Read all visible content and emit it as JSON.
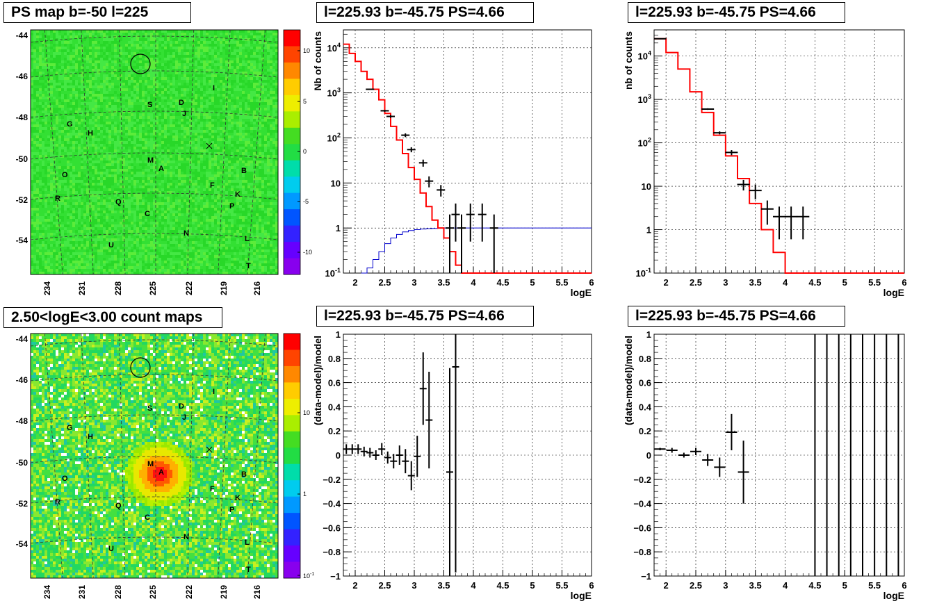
{
  "colors": {
    "data": "#000000",
    "model": "#ff0000",
    "ratio_curve": "#0000cc",
    "grid": "#000000",
    "map_base": "#22dd22"
  },
  "maps": [
    {
      "title": "PS map b=-50 l=225",
      "kind": "significance",
      "lat_ticks": [
        "-44",
        "-46",
        "-48",
        "-50",
        "-52",
        "-54"
      ],
      "lon_ticks": [
        "234",
        "231",
        "228",
        "225",
        "222",
        "219",
        "216"
      ],
      "colorbar_ticks": [
        "10",
        "5",
        "0",
        "-5",
        "-10"
      ],
      "colorbar_scale": "linear",
      "colorbar_range": [
        -12,
        12
      ],
      "source_labels": [
        "I",
        "S",
        "D",
        "J",
        "G",
        "H",
        "M",
        "A",
        "B",
        "O",
        "F",
        "K",
        "R",
        "Q",
        "P",
        "C",
        "N",
        "U",
        "L",
        "T"
      ]
    },
    {
      "title": "2.50<logE<3.00 count maps",
      "kind": "counts",
      "lat_ticks": [
        "-44",
        "-46",
        "-48",
        "-50",
        "-52",
        "-54"
      ],
      "lon_ticks": [
        "234",
        "231",
        "228",
        "225",
        "222",
        "219",
        "216"
      ],
      "colorbar_ticks": [
        "10",
        "1",
        "10-1"
      ],
      "colorbar_scale": "log",
      "colorbar_range": [
        0.1,
        50
      ],
      "source_labels": [
        "I",
        "S",
        "D",
        "J",
        "G",
        "H",
        "M",
        "A",
        "B",
        "O",
        "F",
        "K",
        "R",
        "Q",
        "P",
        "C",
        "N",
        "U",
        "L",
        "T"
      ]
    }
  ],
  "chart_data": [
    {
      "type": "line",
      "title": "l=225.93 b=-45.75 PS=4.66",
      "xlabel": "logE",
      "ylabel": "Nb of counts",
      "yscale": "log",
      "xlim": [
        1.8,
        6
      ],
      "ylim": [
        0.1,
        25000
      ],
      "x_ticks": [
        "2",
        "2.5",
        "3",
        "3.5",
        "4",
        "4.5",
        "5",
        "5.5",
        "6"
      ],
      "y_ticks": [
        "10^4",
        "10^3",
        "10^2",
        "10",
        "1",
        "10^-1"
      ],
      "grid": true,
      "bin_edges": [
        1.8,
        1.9,
        2.0,
        2.1,
        2.2,
        2.3,
        2.4,
        2.5,
        2.6,
        2.7,
        2.8,
        2.9,
        3.0,
        3.1,
        3.2,
        3.3,
        3.4,
        3.5,
        3.6,
        3.7,
        3.8,
        3.9,
        4.0,
        6.0
      ],
      "model_counts": [
        12000,
        7500,
        5000,
        3000,
        2000,
        1200,
        700,
        350,
        180,
        90,
        45,
        22,
        12,
        6,
        3,
        1.5,
        1.0,
        0.6,
        0.3,
        0.15,
        0.1,
        0.1,
        0.1
      ],
      "data_points": [
        {
          "x": 2.25,
          "y": 1200,
          "err": 40
        },
        {
          "x": 2.5,
          "y": 400,
          "err": 20
        },
        {
          "x": 2.6,
          "y": 300,
          "err": 20
        },
        {
          "x": 2.85,
          "y": 115,
          "err": 11
        },
        {
          "x": 2.95,
          "y": 55,
          "err": 7
        },
        {
          "x": 3.15,
          "y": 28,
          "err": 5
        },
        {
          "x": 3.25,
          "y": 11,
          "err": 3
        },
        {
          "x": 3.45,
          "y": 7,
          "err": 2
        },
        {
          "x": 3.6,
          "y": 1,
          "err": 1
        },
        {
          "x": 3.7,
          "y": 2,
          "err": 1.5
        },
        {
          "x": 3.8,
          "y": 1,
          "err": 1
        },
        {
          "x": 3.95,
          "y": 2,
          "err": 1.5
        },
        {
          "x": 4.15,
          "y": 2,
          "err": 1.5
        },
        {
          "x": 4.35,
          "y": 1,
          "err": 1
        }
      ],
      "ratio_curve": {
        "x": [
          2.1,
          2.2,
          2.3,
          2.4,
          2.5,
          2.6,
          2.7,
          2.8,
          2.9,
          3.0,
          3.1,
          3.2,
          3.3,
          3.4,
          3.5,
          3.6,
          3.7,
          6.0
        ],
        "y": [
          0.1,
          0.13,
          0.2,
          0.3,
          0.45,
          0.6,
          0.72,
          0.82,
          0.88,
          0.92,
          0.95,
          0.97,
          0.98,
          0.99,
          1.0,
          1.0,
          1.0,
          1.0
        ]
      }
    },
    {
      "type": "line",
      "title": "l=225.93 b=-45.75 PS=4.66",
      "xlabel": "logE",
      "ylabel": "nb of counts",
      "yscale": "log",
      "xlim": [
        1.8,
        6
      ],
      "ylim": [
        0.1,
        40000
      ],
      "x_ticks": [
        "2",
        "2.5",
        "3",
        "3.5",
        "4",
        "4.5",
        "5",
        "5.5",
        "6"
      ],
      "y_ticks": [
        "10^4",
        "10^3",
        "10^2",
        "10",
        "1",
        "10^-1"
      ],
      "grid": true,
      "bin_edges": [
        1.8,
        2.0,
        2.2,
        2.4,
        2.6,
        2.8,
        3.0,
        3.2,
        3.4,
        3.6,
        3.8,
        4.0,
        4.2,
        6.0
      ],
      "model_counts": [
        25000,
        12000,
        5000,
        1500,
        500,
        150,
        50,
        15,
        4,
        1,
        0.3,
        0.1,
        0.1
      ],
      "data_points": [
        {
          "x": 1.9,
          "y": 25000,
          "err": 160
        },
        {
          "x": 2.7,
          "y": 600,
          "err": 25
        },
        {
          "x": 2.9,
          "y": 170,
          "err": 13
        },
        {
          "x": 3.1,
          "y": 60,
          "err": 8
        },
        {
          "x": 3.3,
          "y": 11,
          "err": 3
        },
        {
          "x": 3.5,
          "y": 8,
          "err": 3
        },
        {
          "x": 3.7,
          "y": 3,
          "err": 1.7
        },
        {
          "x": 3.9,
          "y": 2,
          "err": 1.4
        },
        {
          "x": 4.1,
          "y": 2,
          "err": 1.4
        },
        {
          "x": 4.3,
          "y": 2,
          "err": 1.4
        }
      ]
    },
    {
      "type": "scatter",
      "title": "l=225.93 b=-45.75 PS=4.66",
      "xlabel": "logE",
      "ylabel": "(data-model)/model",
      "xlim": [
        1.8,
        6
      ],
      "ylim": [
        -1,
        1
      ],
      "x_ticks": [
        "2",
        "2.5",
        "3",
        "3.5",
        "4",
        "4.5",
        "5",
        "5.5",
        "6"
      ],
      "y_ticks": [
        "1",
        "0.8",
        "0.6",
        "0.4",
        "0.2",
        "0",
        "-0.2",
        "-0.4",
        "-0.6",
        "-0.8",
        "-1"
      ],
      "grid": true,
      "points": [
        {
          "x": 1.85,
          "y": 0.05,
          "err": 0.04
        },
        {
          "x": 1.95,
          "y": 0.05,
          "err": 0.04
        },
        {
          "x": 2.05,
          "y": 0.05,
          "err": 0.04
        },
        {
          "x": 2.15,
          "y": 0.03,
          "err": 0.04
        },
        {
          "x": 2.25,
          "y": 0.02,
          "err": 0.04
        },
        {
          "x": 2.35,
          "y": 0.0,
          "err": 0.04
        },
        {
          "x": 2.45,
          "y": 0.05,
          "err": 0.05
        },
        {
          "x": 2.55,
          "y": -0.02,
          "err": 0.05
        },
        {
          "x": 2.65,
          "y": -0.05,
          "err": 0.06
        },
        {
          "x": 2.75,
          "y": 0.0,
          "err": 0.08
        },
        {
          "x": 2.85,
          "y": -0.05,
          "err": 0.1
        },
        {
          "x": 2.95,
          "y": -0.17,
          "err": 0.12
        },
        {
          "x": 3.05,
          "y": -0.01,
          "err": 0.17
        },
        {
          "x": 3.15,
          "y": 0.55,
          "err": 0.3
        },
        {
          "x": 3.25,
          "y": 0.29,
          "err": 0.4
        },
        {
          "x": 3.6,
          "y": -0.14,
          "err": 0.86
        },
        {
          "x": 3.7,
          "y": 0.73,
          "err": 1.7
        }
      ]
    },
    {
      "type": "scatter",
      "title": "l=225.93 b=-45.75 PS=4.66",
      "xlabel": "logE",
      "ylabel": "(data-model)/model",
      "xlim": [
        1.8,
        6
      ],
      "ylim": [
        -1,
        1
      ],
      "x_ticks": [
        "2",
        "2.5",
        "3",
        "3.5",
        "4",
        "4.5",
        "5",
        "5.5",
        "6"
      ],
      "y_ticks": [
        "1",
        "0.8",
        "0.6",
        "0.4",
        "0.2",
        "0",
        "-0.2",
        "-0.4",
        "-0.6",
        "-0.8",
        "-1"
      ],
      "grid": true,
      "points": [
        {
          "x": 1.9,
          "y": 0.05,
          "err": 0.01
        },
        {
          "x": 2.1,
          "y": 0.04,
          "err": 0.02
        },
        {
          "x": 2.3,
          "y": 0.0,
          "err": 0.02
        },
        {
          "x": 2.5,
          "y": 0.03,
          "err": 0.03
        },
        {
          "x": 2.7,
          "y": -0.04,
          "err": 0.05
        },
        {
          "x": 2.9,
          "y": -0.1,
          "err": 0.08
        },
        {
          "x": 3.1,
          "y": 0.19,
          "err": 0.15
        },
        {
          "x": 3.3,
          "y": -0.14,
          "err": 0.26
        }
      ],
      "full_range_bars_x": [
        4.5,
        4.7,
        4.9,
        5.1,
        5.3,
        5.5,
        5.7,
        5.9
      ]
    }
  ]
}
